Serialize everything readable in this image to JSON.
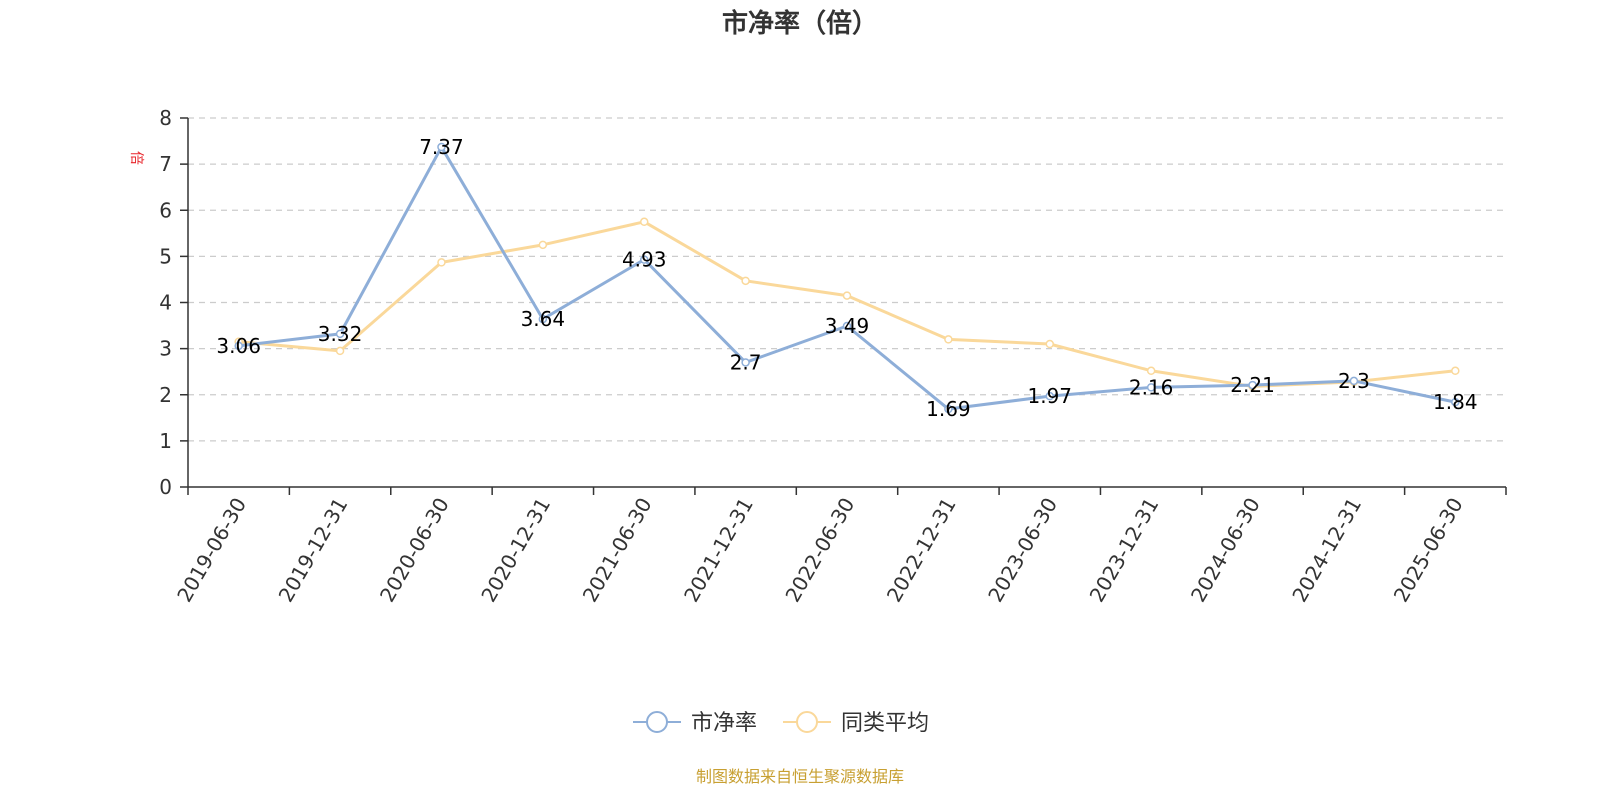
{
  "chart_data": {
    "type": "line",
    "title": "市净率（倍）",
    "ylabel": "倍",
    "xlabel": "",
    "ylim": [
      0,
      8
    ],
    "yticks": [
      0,
      1,
      2,
      3,
      4,
      5,
      6,
      7,
      8
    ],
    "grid": true,
    "legend_position": "bottom",
    "categories": [
      "2019-06-30",
      "2019-12-31",
      "2020-06-30",
      "2020-12-31",
      "2021-06-30",
      "2021-12-31",
      "2022-06-30",
      "2022-12-31",
      "2023-06-30",
      "2023-12-31",
      "2024-06-30",
      "2024-12-31",
      "2025-06-30"
    ],
    "series": [
      {
        "name": "市净率",
        "color": "#8eaed8",
        "values": [
          3.06,
          3.32,
          7.37,
          3.64,
          4.93,
          2.7,
          3.49,
          1.69,
          1.97,
          2.16,
          2.21,
          2.3,
          1.84
        ],
        "labels": [
          "3.06",
          "3.32",
          "7.37",
          "3.64",
          "4.93",
          "2.7",
          "3.49",
          "1.69",
          "1.97",
          "2.16",
          "2.21",
          "2.3",
          "1.84"
        ]
      },
      {
        "name": "同类平均",
        "color": "#fad89a",
        "values": [
          3.15,
          2.95,
          4.87,
          5.25,
          5.75,
          4.47,
          4.15,
          3.2,
          3.1,
          2.52,
          2.18,
          2.28,
          2.52
        ]
      }
    ],
    "source_note": "制图数据来自恒生聚源数据库"
  }
}
